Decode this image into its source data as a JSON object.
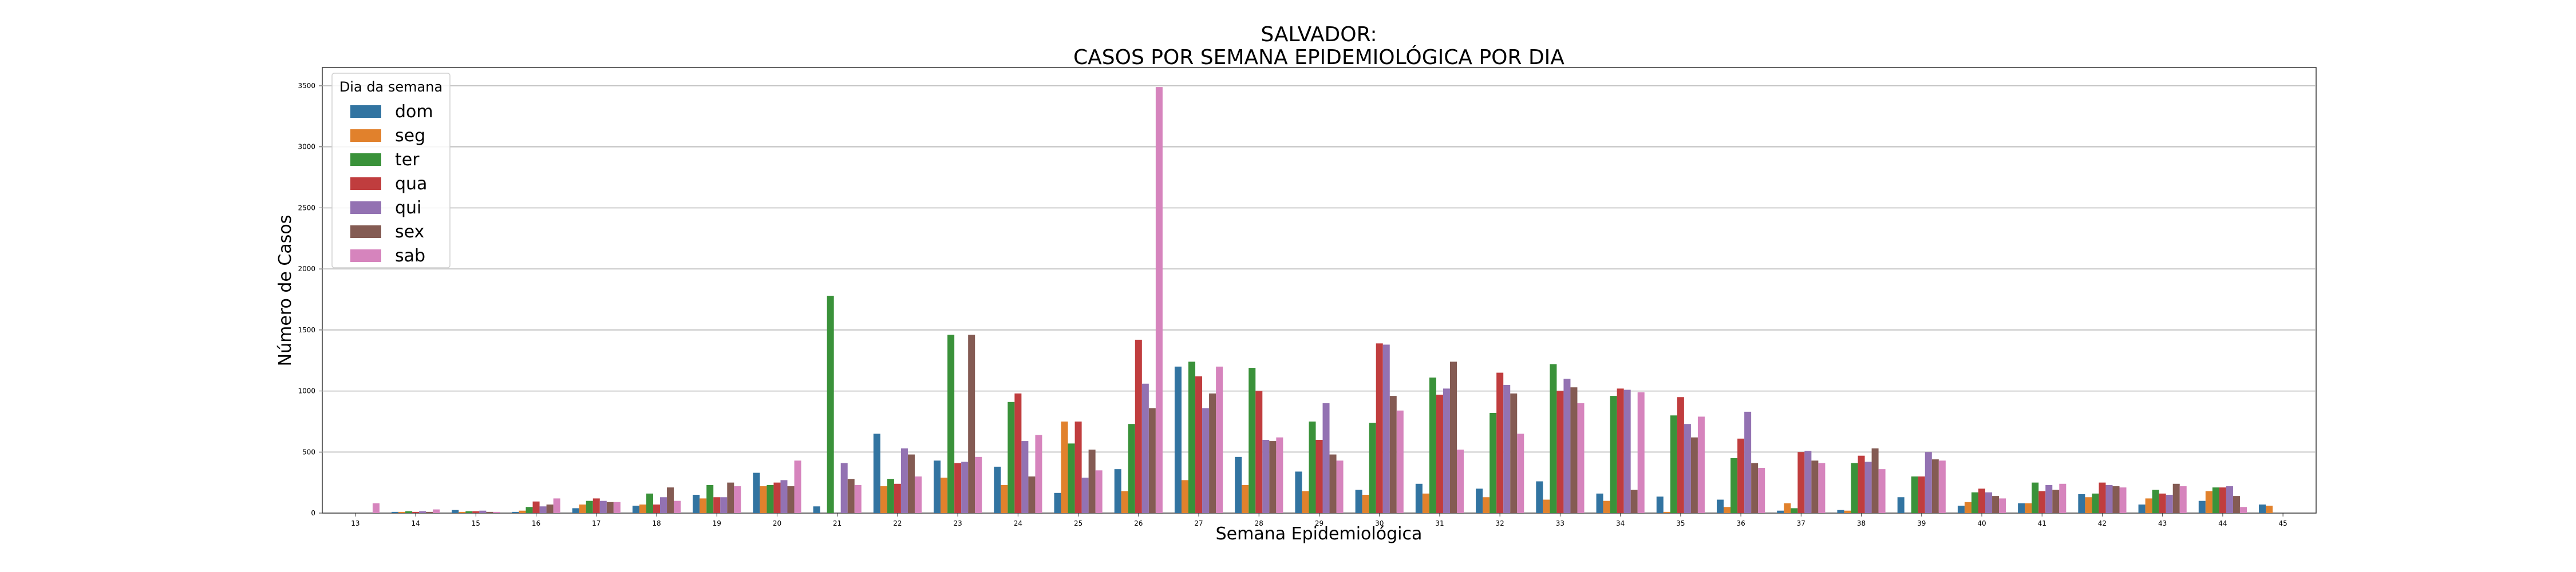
{
  "chart_data": {
    "type": "bar",
    "title": "SALVADOR:",
    "subtitle": "CASOS POR SEMANA EPIDEMIOLÓGICA POR DIA",
    "xlabel": "Semana Epidemiológica",
    "ylabel": "Número de Casos",
    "legend_title": "Dia da semana",
    "legend_position": "top-left",
    "grid": "horizontal",
    "ylim": [
      0,
      3650
    ],
    "yticks": [
      0,
      500,
      1000,
      1500,
      2000,
      2500,
      3000,
      3500
    ],
    "categories": [
      "13",
      "14",
      "15",
      "16",
      "17",
      "18",
      "19",
      "20",
      "21",
      "22",
      "23",
      "24",
      "25",
      "26",
      "27",
      "28",
      "29",
      "30",
      "31",
      "32",
      "33",
      "34",
      "35",
      "36",
      "37",
      "38",
      "39",
      "40",
      "41",
      "42",
      "43",
      "44",
      "45"
    ],
    "series": [
      {
        "name": "dom",
        "color": "#3274a1",
        "values": [
          0,
          10,
          25,
          10,
          40,
          60,
          150,
          330,
          55,
          650,
          430,
          380,
          165,
          360,
          1200,
          460,
          340,
          190,
          240,
          200,
          260,
          160,
          135,
          110,
          20,
          25,
          130,
          60,
          80,
          155,
          70,
          100,
          70
        ]
      },
      {
        "name": "seg",
        "color": "#e1812c",
        "values": [
          0,
          10,
          10,
          20,
          70,
          70,
          120,
          220,
          0,
          220,
          290,
          230,
          750,
          180,
          270,
          230,
          180,
          150,
          160,
          130,
          110,
          100,
          10,
          50,
          80,
          20,
          0,
          90,
          80,
          130,
          120,
          180,
          60
        ]
      },
      {
        "name": "ter",
        "color": "#3a923a",
        "values": [
          0,
          15,
          15,
          50,
          100,
          160,
          230,
          230,
          1780,
          280,
          1460,
          910,
          570,
          730,
          1240,
          1190,
          750,
          740,
          1110,
          820,
          1220,
          960,
          800,
          450,
          40,
          410,
          300,
          170,
          250,
          160,
          190,
          210,
          0
        ]
      },
      {
        "name": "qua",
        "color": "#c03d3e",
        "values": [
          0,
          10,
          15,
          95,
          120,
          70,
          130,
          250,
          0,
          240,
          410,
          980,
          750,
          1420,
          1120,
          1000,
          600,
          1390,
          970,
          1150,
          1000,
          1020,
          950,
          610,
          500,
          470,
          300,
          200,
          180,
          250,
          160,
          210,
          0
        ]
      },
      {
        "name": "qui",
        "color": "#9372b2",
        "values": [
          0,
          15,
          20,
          55,
          100,
          130,
          130,
          270,
          410,
          530,
          420,
          590,
          290,
          1060,
          860,
          600,
          900,
          1380,
          1020,
          1050,
          1100,
          1010,
          730,
          830,
          510,
          420,
          500,
          170,
          230,
          230,
          150,
          220,
          0
        ]
      },
      {
        "name": "sex",
        "color": "#845b53",
        "values": [
          0,
          10,
          10,
          70,
          90,
          210,
          250,
          220,
          280,
          480,
          1460,
          300,
          520,
          860,
          980,
          590,
          480,
          960,
          1240,
          980,
          1030,
          190,
          620,
          410,
          430,
          530,
          440,
          140,
          190,
          220,
          240,
          140,
          0
        ]
      },
      {
        "name": "sab",
        "color": "#d684bd",
        "values": [
          80,
          30,
          10,
          120,
          90,
          100,
          220,
          430,
          230,
          300,
          460,
          640,
          350,
          3490,
          1200,
          620,
          430,
          840,
          520,
          650,
          900,
          990,
          790,
          370,
          410,
          360,
          430,
          120,
          240,
          210,
          220,
          50,
          0
        ]
      }
    ]
  }
}
